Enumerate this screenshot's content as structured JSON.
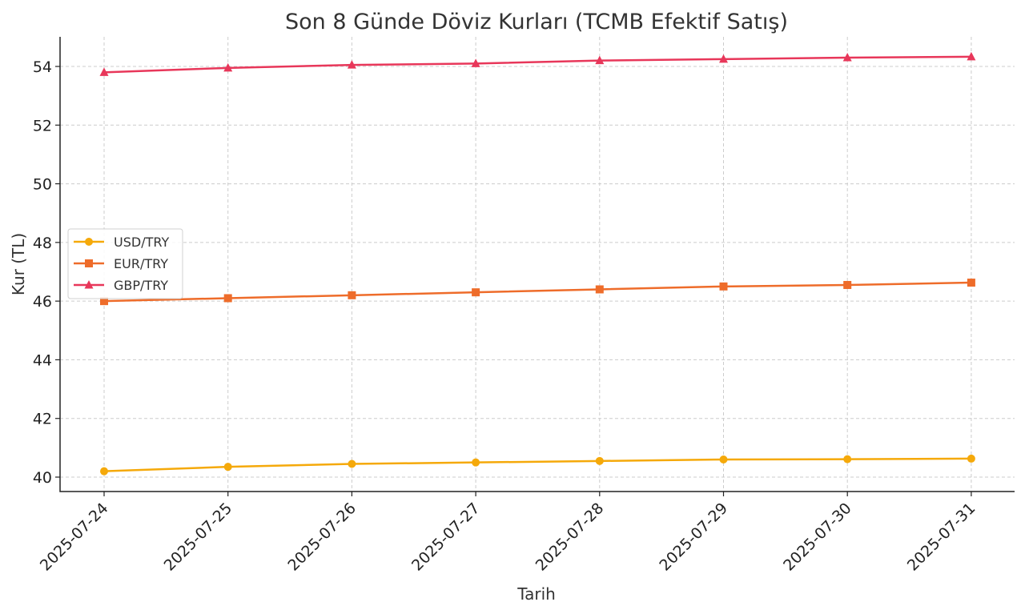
{
  "chart_data": {
    "type": "line",
    "title": "Son 8 Günde Döviz Kurları (TCMB Efektif Satış)",
    "xlabel": "Tarih",
    "ylabel": "Kur (TL)",
    "categories": [
      "2025-07-24",
      "2025-07-25",
      "2025-07-26",
      "2025-07-27",
      "2025-07-28",
      "2025-07-29",
      "2025-07-30",
      "2025-07-31"
    ],
    "ylim": [
      39.5,
      55.0
    ],
    "yticks": [
      40,
      42,
      44,
      46,
      48,
      50,
      52,
      54
    ],
    "grid": true,
    "legend_position": "center-left",
    "series": [
      {
        "name": "USD/TRY",
        "color": "#f5a90a",
        "marker": "circle",
        "values": [
          40.2,
          40.35,
          40.45,
          40.5,
          40.55,
          40.6,
          40.61,
          40.63
        ]
      },
      {
        "name": "EUR/TRY",
        "color": "#ee6c2a",
        "marker": "square",
        "values": [
          46.0,
          46.1,
          46.2,
          46.3,
          46.4,
          46.5,
          46.55,
          46.63
        ]
      },
      {
        "name": "GBP/TRY",
        "color": "#e8375a",
        "marker": "triangle",
        "values": [
          53.8,
          53.95,
          54.05,
          54.1,
          54.2,
          54.25,
          54.3,
          54.33
        ]
      }
    ]
  }
}
